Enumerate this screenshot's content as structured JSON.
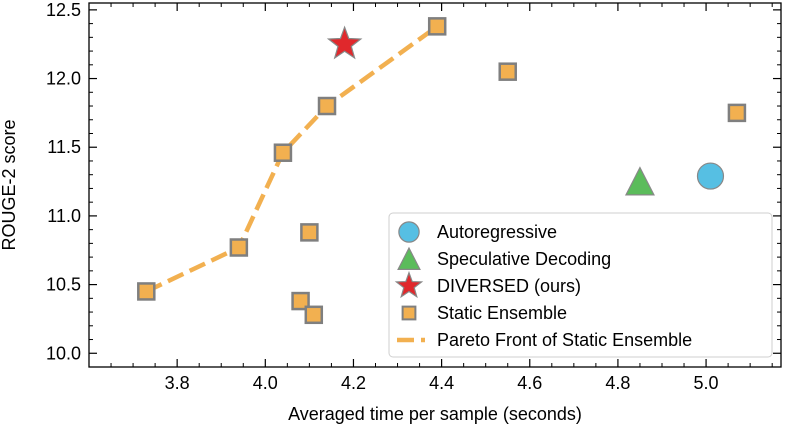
{
  "chart_data": {
    "type": "scatter",
    "xlabel": "Averaged time per sample (seconds)",
    "ylabel": "ROUGE-2 score",
    "xlim": [
      3.6,
      5.17
    ],
    "ylim": [
      9.9,
      12.55
    ],
    "x_ticks": [
      3.8,
      4.0,
      4.2,
      4.4,
      4.6,
      4.8,
      5.0
    ],
    "x_tick_labels": [
      "3.8",
      "4.0",
      "4.2",
      "4.4",
      "4.6",
      "4.8",
      "5.0"
    ],
    "y_ticks": [
      10.0,
      10.5,
      11.0,
      11.5,
      12.0,
      12.5
    ],
    "y_tick_labels": [
      "10.0",
      "10.5",
      "11.0",
      "11.5",
      "12.0",
      "12.5"
    ],
    "grid": false,
    "legend_position": "lower-right",
    "series": [
      {
        "name": "Static Ensemble",
        "marker": "square",
        "color": "#F2B050",
        "points": [
          {
            "x": 3.73,
            "y": 10.45,
            "pareto": true
          },
          {
            "x": 3.94,
            "y": 10.77,
            "pareto": true
          },
          {
            "x": 4.04,
            "y": 11.46,
            "pareto": true
          },
          {
            "x": 4.14,
            "y": 11.8,
            "pareto": true
          },
          {
            "x": 4.39,
            "y": 12.38,
            "pareto": true
          },
          {
            "x": 4.08,
            "y": 10.38,
            "pareto": false
          },
          {
            "x": 4.1,
            "y": 10.88,
            "pareto": false
          },
          {
            "x": 4.11,
            "y": 10.28,
            "pareto": false
          },
          {
            "x": 4.55,
            "y": 12.05,
            "pareto": false
          },
          {
            "x": 5.07,
            "y": 11.75,
            "pareto": false
          }
        ]
      },
      {
        "name": "Pareto Front of Static Ensemble",
        "marker": "dashed-line",
        "color": "#F2B050",
        "points": [
          {
            "x": 3.73,
            "y": 10.45
          },
          {
            "x": 3.94,
            "y": 10.77
          },
          {
            "x": 4.04,
            "y": 11.46
          },
          {
            "x": 4.14,
            "y": 11.8
          },
          {
            "x": 4.39,
            "y": 12.38
          }
        ]
      },
      {
        "name": "Autoregressive",
        "marker": "circle",
        "color": "#56BFE3",
        "points": [
          {
            "x": 5.01,
            "y": 11.29
          }
        ]
      },
      {
        "name": "Speculative Decoding",
        "marker": "triangle",
        "color": "#5BBC5B",
        "points": [
          {
            "x": 4.85,
            "y": 11.25
          }
        ]
      },
      {
        "name": "DIVERSED (ours)",
        "marker": "star",
        "color": "#E0282C",
        "points": [
          {
            "x": 4.18,
            "y": 12.25
          }
        ]
      }
    ],
    "legend": [
      {
        "label": "Autoregressive",
        "marker": "circle",
        "color": "#56BFE3"
      },
      {
        "label": "Speculative Decoding",
        "marker": "triangle",
        "color": "#5BBC5B"
      },
      {
        "label": "DIVERSED (ours)",
        "marker": "star",
        "color": "#E0282C"
      },
      {
        "label": "Static Ensemble",
        "marker": "square",
        "color": "#F2B050"
      },
      {
        "label": "Pareto Front of Static Ensemble",
        "marker": "dashed-line",
        "color": "#F2B050"
      }
    ]
  }
}
